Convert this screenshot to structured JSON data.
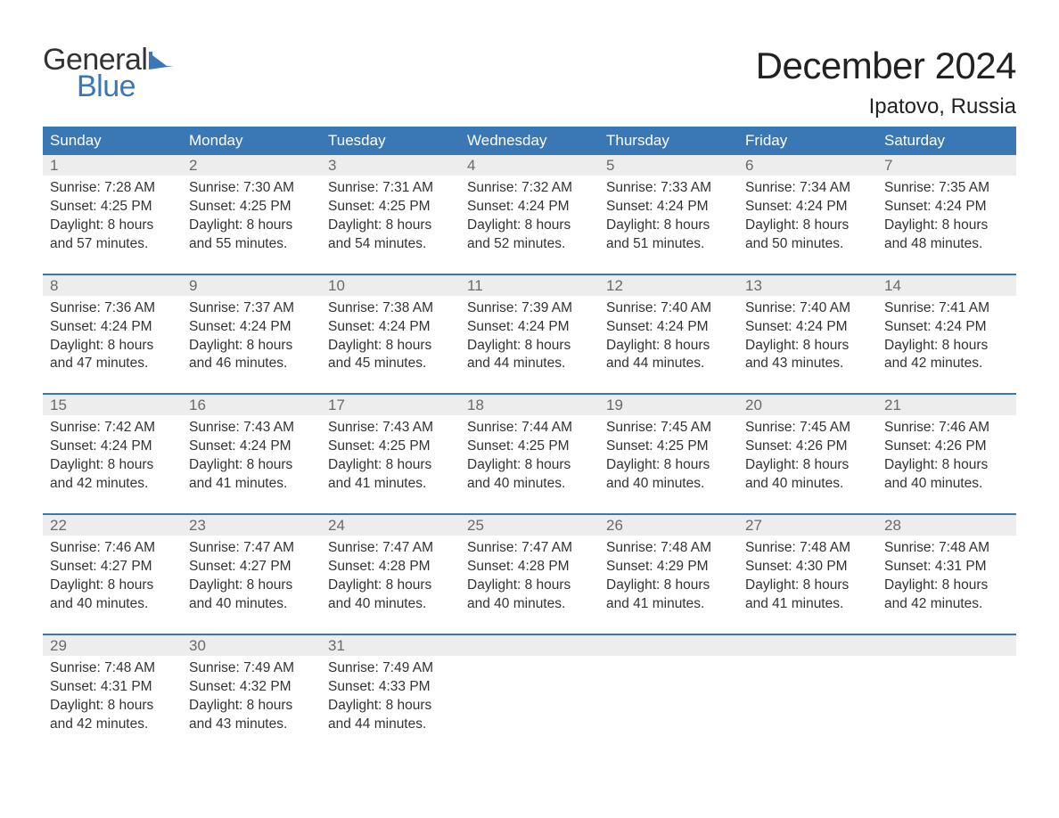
{
  "logo": {
    "text_general": "General",
    "text_blue": "Blue",
    "flag_color": "#3a78b5"
  },
  "title": "December 2024",
  "location": "Ipatovo, Russia",
  "colors": {
    "header_bg": "#3a78b5",
    "header_text": "#ffffff",
    "daynum_bg": "#ededed",
    "daynum_text": "#6a6a6a",
    "body_text": "#333333",
    "divider": "#3a78b5",
    "page_bg": "#ffffff"
  },
  "typography": {
    "title_fontsize": 42,
    "location_fontsize": 24,
    "weekday_fontsize": 17,
    "daynum_fontsize": 17,
    "detail_fontsize": 15.5
  },
  "weekdays": [
    "Sunday",
    "Monday",
    "Tuesday",
    "Wednesday",
    "Thursday",
    "Friday",
    "Saturday"
  ],
  "weeks": [
    [
      {
        "day": 1,
        "sunrise": "Sunrise: 7:28 AM",
        "sunset": "Sunset: 4:25 PM",
        "daylight1": "Daylight: 8 hours",
        "daylight2": "and 57 minutes."
      },
      {
        "day": 2,
        "sunrise": "Sunrise: 7:30 AM",
        "sunset": "Sunset: 4:25 PM",
        "daylight1": "Daylight: 8 hours",
        "daylight2": "and 55 minutes."
      },
      {
        "day": 3,
        "sunrise": "Sunrise: 7:31 AM",
        "sunset": "Sunset: 4:25 PM",
        "daylight1": "Daylight: 8 hours",
        "daylight2": "and 54 minutes."
      },
      {
        "day": 4,
        "sunrise": "Sunrise: 7:32 AM",
        "sunset": "Sunset: 4:24 PM",
        "daylight1": "Daylight: 8 hours",
        "daylight2": "and 52 minutes."
      },
      {
        "day": 5,
        "sunrise": "Sunrise: 7:33 AM",
        "sunset": "Sunset: 4:24 PM",
        "daylight1": "Daylight: 8 hours",
        "daylight2": "and 51 minutes."
      },
      {
        "day": 6,
        "sunrise": "Sunrise: 7:34 AM",
        "sunset": "Sunset: 4:24 PM",
        "daylight1": "Daylight: 8 hours",
        "daylight2": "and 50 minutes."
      },
      {
        "day": 7,
        "sunrise": "Sunrise: 7:35 AM",
        "sunset": "Sunset: 4:24 PM",
        "daylight1": "Daylight: 8 hours",
        "daylight2": "and 48 minutes."
      }
    ],
    [
      {
        "day": 8,
        "sunrise": "Sunrise: 7:36 AM",
        "sunset": "Sunset: 4:24 PM",
        "daylight1": "Daylight: 8 hours",
        "daylight2": "and 47 minutes."
      },
      {
        "day": 9,
        "sunrise": "Sunrise: 7:37 AM",
        "sunset": "Sunset: 4:24 PM",
        "daylight1": "Daylight: 8 hours",
        "daylight2": "and 46 minutes."
      },
      {
        "day": 10,
        "sunrise": "Sunrise: 7:38 AM",
        "sunset": "Sunset: 4:24 PM",
        "daylight1": "Daylight: 8 hours",
        "daylight2": "and 45 minutes."
      },
      {
        "day": 11,
        "sunrise": "Sunrise: 7:39 AM",
        "sunset": "Sunset: 4:24 PM",
        "daylight1": "Daylight: 8 hours",
        "daylight2": "and 44 minutes."
      },
      {
        "day": 12,
        "sunrise": "Sunrise: 7:40 AM",
        "sunset": "Sunset: 4:24 PM",
        "daylight1": "Daylight: 8 hours",
        "daylight2": "and 44 minutes."
      },
      {
        "day": 13,
        "sunrise": "Sunrise: 7:40 AM",
        "sunset": "Sunset: 4:24 PM",
        "daylight1": "Daylight: 8 hours",
        "daylight2": "and 43 minutes."
      },
      {
        "day": 14,
        "sunrise": "Sunrise: 7:41 AM",
        "sunset": "Sunset: 4:24 PM",
        "daylight1": "Daylight: 8 hours",
        "daylight2": "and 42 minutes."
      }
    ],
    [
      {
        "day": 15,
        "sunrise": "Sunrise: 7:42 AM",
        "sunset": "Sunset: 4:24 PM",
        "daylight1": "Daylight: 8 hours",
        "daylight2": "and 42 minutes."
      },
      {
        "day": 16,
        "sunrise": "Sunrise: 7:43 AM",
        "sunset": "Sunset: 4:24 PM",
        "daylight1": "Daylight: 8 hours",
        "daylight2": "and 41 minutes."
      },
      {
        "day": 17,
        "sunrise": "Sunrise: 7:43 AM",
        "sunset": "Sunset: 4:25 PM",
        "daylight1": "Daylight: 8 hours",
        "daylight2": "and 41 minutes."
      },
      {
        "day": 18,
        "sunrise": "Sunrise: 7:44 AM",
        "sunset": "Sunset: 4:25 PM",
        "daylight1": "Daylight: 8 hours",
        "daylight2": "and 40 minutes."
      },
      {
        "day": 19,
        "sunrise": "Sunrise: 7:45 AM",
        "sunset": "Sunset: 4:25 PM",
        "daylight1": "Daylight: 8 hours",
        "daylight2": "and 40 minutes."
      },
      {
        "day": 20,
        "sunrise": "Sunrise: 7:45 AM",
        "sunset": "Sunset: 4:26 PM",
        "daylight1": "Daylight: 8 hours",
        "daylight2": "and 40 minutes."
      },
      {
        "day": 21,
        "sunrise": "Sunrise: 7:46 AM",
        "sunset": "Sunset: 4:26 PM",
        "daylight1": "Daylight: 8 hours",
        "daylight2": "and 40 minutes."
      }
    ],
    [
      {
        "day": 22,
        "sunrise": "Sunrise: 7:46 AM",
        "sunset": "Sunset: 4:27 PM",
        "daylight1": "Daylight: 8 hours",
        "daylight2": "and 40 minutes."
      },
      {
        "day": 23,
        "sunrise": "Sunrise: 7:47 AM",
        "sunset": "Sunset: 4:27 PM",
        "daylight1": "Daylight: 8 hours",
        "daylight2": "and 40 minutes."
      },
      {
        "day": 24,
        "sunrise": "Sunrise: 7:47 AM",
        "sunset": "Sunset: 4:28 PM",
        "daylight1": "Daylight: 8 hours",
        "daylight2": "and 40 minutes."
      },
      {
        "day": 25,
        "sunrise": "Sunrise: 7:47 AM",
        "sunset": "Sunset: 4:28 PM",
        "daylight1": "Daylight: 8 hours",
        "daylight2": "and 40 minutes."
      },
      {
        "day": 26,
        "sunrise": "Sunrise: 7:48 AM",
        "sunset": "Sunset: 4:29 PM",
        "daylight1": "Daylight: 8 hours",
        "daylight2": "and 41 minutes."
      },
      {
        "day": 27,
        "sunrise": "Sunrise: 7:48 AM",
        "sunset": "Sunset: 4:30 PM",
        "daylight1": "Daylight: 8 hours",
        "daylight2": "and 41 minutes."
      },
      {
        "day": 28,
        "sunrise": "Sunrise: 7:48 AM",
        "sunset": "Sunset: 4:31 PM",
        "daylight1": "Daylight: 8 hours",
        "daylight2": "and 42 minutes."
      }
    ],
    [
      {
        "day": 29,
        "sunrise": "Sunrise: 7:48 AM",
        "sunset": "Sunset: 4:31 PM",
        "daylight1": "Daylight: 8 hours",
        "daylight2": "and 42 minutes."
      },
      {
        "day": 30,
        "sunrise": "Sunrise: 7:49 AM",
        "sunset": "Sunset: 4:32 PM",
        "daylight1": "Daylight: 8 hours",
        "daylight2": "and 43 minutes."
      },
      {
        "day": 31,
        "sunrise": "Sunrise: 7:49 AM",
        "sunset": "Sunset: 4:33 PM",
        "daylight1": "Daylight: 8 hours",
        "daylight2": "and 44 minutes."
      },
      null,
      null,
      null,
      null
    ]
  ]
}
